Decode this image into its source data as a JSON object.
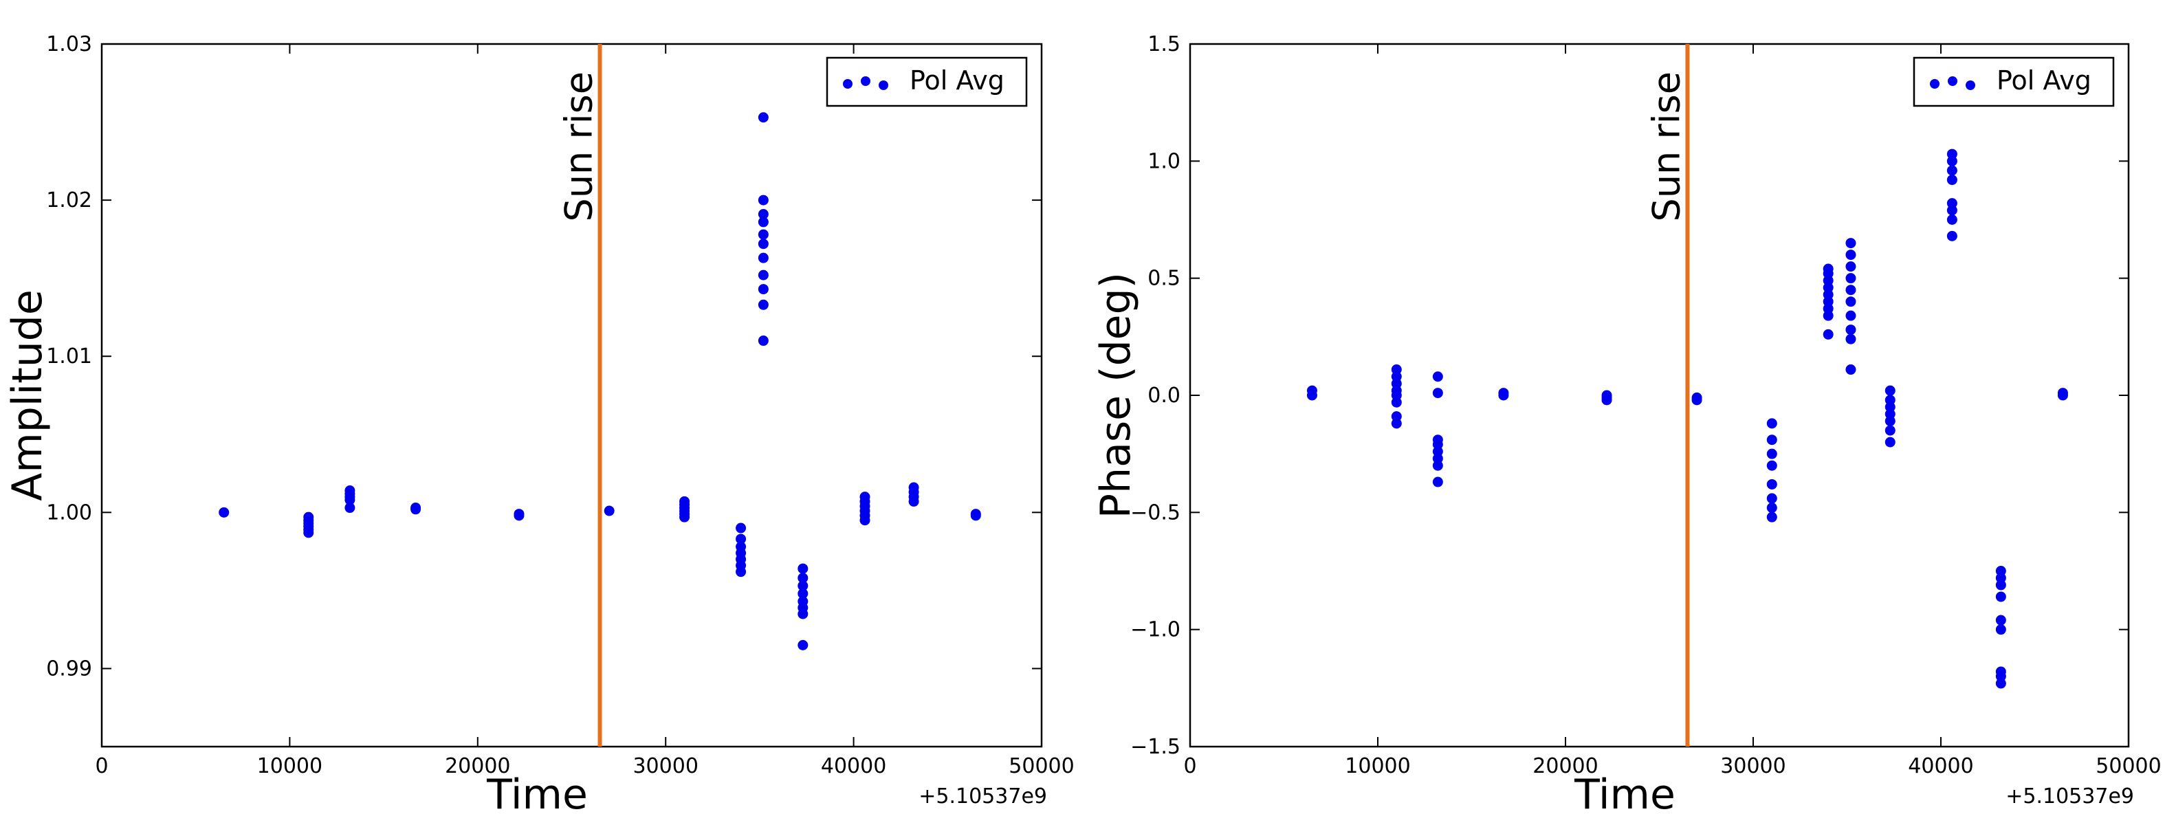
{
  "chart_data": [
    {
      "type": "scatter",
      "title": "",
      "xlabel": "Time",
      "ylabel": "Amplitude",
      "x_offset_label": "+5.10537e9",
      "xlim": [
        0,
        50000
      ],
      "ylim": [
        0.985,
        1.03
      ],
      "xticks": [
        0,
        10000,
        20000,
        30000,
        40000,
        50000
      ],
      "xtick_labels": [
        "0",
        "10000",
        "20000",
        "30000",
        "40000",
        "50000"
      ],
      "yticks": [
        0.99,
        1.0,
        1.01,
        1.02,
        1.03
      ],
      "ytick_labels": [
        "0.99",
        "1.00",
        "1.01",
        "1.02",
        "1.03"
      ],
      "grid": false,
      "legend_position": "top-right",
      "annotation": {
        "label": "Sun rise",
        "x": 26500,
        "line_color": "#e8701a",
        "text_color": "#8b0000"
      },
      "series": [
        {
          "name": "Pol Avg",
          "color": "#0000ee",
          "points": [
            [
              6500,
              1.0
            ],
            [
              11000,
              0.9987
            ],
            [
              11000,
              0.9989
            ],
            [
              11000,
              0.9991
            ],
            [
              11000,
              0.9993
            ],
            [
              11000,
              0.9995
            ],
            [
              11000,
              0.9997
            ],
            [
              13200,
              1.0003
            ],
            [
              13200,
              1.0008
            ],
            [
              13200,
              1.001
            ],
            [
              13200,
              1.0012
            ],
            [
              13200,
              1.0014
            ],
            [
              16700,
              1.0002
            ],
            [
              16700,
              1.0003
            ],
            [
              22200,
              0.9999
            ],
            [
              22200,
              0.9998
            ],
            [
              27000,
              1.0001
            ],
            [
              31000,
              0.9997
            ],
            [
              31000,
              0.9999
            ],
            [
              31000,
              1.0001
            ],
            [
              31000,
              1.0003
            ],
            [
              31000,
              1.0005
            ],
            [
              31000,
              1.0007
            ],
            [
              34000,
              0.9962
            ],
            [
              34000,
              0.9966
            ],
            [
              34000,
              0.997
            ],
            [
              34000,
              0.9974
            ],
            [
              34000,
              0.9978
            ],
            [
              34000,
              0.9983
            ],
            [
              34000,
              0.999
            ],
            [
              35200,
              1.011
            ],
            [
              35200,
              1.0133
            ],
            [
              35200,
              1.0143
            ],
            [
              35200,
              1.0152
            ],
            [
              35200,
              1.0163
            ],
            [
              35200,
              1.0172
            ],
            [
              35200,
              1.0178
            ],
            [
              35200,
              1.0186
            ],
            [
              35200,
              1.0191
            ],
            [
              35200,
              1.02
            ],
            [
              35200,
              1.0253
            ],
            [
              37300,
              0.9915
            ],
            [
              37300,
              0.9935
            ],
            [
              37300,
              0.9939
            ],
            [
              37300,
              0.9943
            ],
            [
              37300,
              0.9948
            ],
            [
              37300,
              0.9953
            ],
            [
              37300,
              0.9958
            ],
            [
              37300,
              0.9964
            ],
            [
              40600,
              0.9995
            ],
            [
              40600,
              0.9998
            ],
            [
              40600,
              1.0001
            ],
            [
              40600,
              1.0004
            ],
            [
              40600,
              1.0007
            ],
            [
              40600,
              1.001
            ],
            [
              43200,
              1.0007
            ],
            [
              43200,
              1.001
            ],
            [
              43200,
              1.0013
            ],
            [
              43200,
              1.0016
            ],
            [
              46500,
              0.9998
            ],
            [
              46500,
              0.9999
            ]
          ]
        }
      ]
    },
    {
      "type": "scatter",
      "title": "",
      "xlabel": "Time",
      "ylabel": "Phase (deg)",
      "x_offset_label": "+5.10537e9",
      "xlim": [
        0,
        50000
      ],
      "ylim": [
        -1.5,
        1.5
      ],
      "xticks": [
        0,
        10000,
        20000,
        30000,
        40000,
        50000
      ],
      "xtick_labels": [
        "0",
        "10000",
        "20000",
        "30000",
        "40000",
        "50000"
      ],
      "yticks": [
        -1.5,
        -1.0,
        -0.5,
        0.0,
        0.5,
        1.0,
        1.5
      ],
      "ytick_labels": [
        "−1.5",
        "−1.0",
        "−0.5",
        "0.0",
        "0.5",
        "1.0",
        "1.5"
      ],
      "grid": false,
      "legend_position": "top-right",
      "annotation": {
        "label": "Sun rise",
        "x": 26500,
        "line_color": "#e8701a",
        "text_color": "#8b0000"
      },
      "series": [
        {
          "name": "Pol Avg",
          "color": "#0000ee",
          "points": [
            [
              6500,
              0.0
            ],
            [
              6500,
              0.02
            ],
            [
              11000,
              -0.12
            ],
            [
              11000,
              -0.09
            ],
            [
              11000,
              -0.03
            ],
            [
              11000,
              0.0
            ],
            [
              11000,
              0.02
            ],
            [
              11000,
              0.05
            ],
            [
              11000,
              0.08
            ],
            [
              11000,
              0.11
            ],
            [
              13200,
              -0.37
            ],
            [
              13200,
              -0.3
            ],
            [
              13200,
              -0.27
            ],
            [
              13200,
              -0.24
            ],
            [
              13200,
              -0.21
            ],
            [
              13200,
              -0.19
            ],
            [
              13200,
              0.01
            ],
            [
              13200,
              0.08
            ],
            [
              16700,
              0.0
            ],
            [
              16700,
              0.01
            ],
            [
              22200,
              -0.02
            ],
            [
              22200,
              -0.01
            ],
            [
              22200,
              0.0
            ],
            [
              27000,
              -0.02
            ],
            [
              27000,
              -0.01
            ],
            [
              31000,
              -0.52
            ],
            [
              31000,
              -0.48
            ],
            [
              31000,
              -0.44
            ],
            [
              31000,
              -0.38
            ],
            [
              31000,
              -0.3
            ],
            [
              31000,
              -0.25
            ],
            [
              31000,
              -0.19
            ],
            [
              31000,
              -0.12
            ],
            [
              34000,
              0.26
            ],
            [
              34000,
              0.34
            ],
            [
              34000,
              0.37
            ],
            [
              34000,
              0.4
            ],
            [
              34000,
              0.43
            ],
            [
              34000,
              0.46
            ],
            [
              34000,
              0.49
            ],
            [
              34000,
              0.52
            ],
            [
              34000,
              0.54
            ],
            [
              35200,
              0.11
            ],
            [
              35200,
              0.24
            ],
            [
              35200,
              0.28
            ],
            [
              35200,
              0.34
            ],
            [
              35200,
              0.4
            ],
            [
              35200,
              0.45
            ],
            [
              35200,
              0.5
            ],
            [
              35200,
              0.55
            ],
            [
              35200,
              0.6
            ],
            [
              35200,
              0.65
            ],
            [
              37300,
              -0.2
            ],
            [
              37300,
              -0.15
            ],
            [
              37300,
              -0.11
            ],
            [
              37300,
              -0.08
            ],
            [
              37300,
              -0.05
            ],
            [
              37300,
              -0.02
            ],
            [
              37300,
              0.02
            ],
            [
              40600,
              0.68
            ],
            [
              40600,
              0.75
            ],
            [
              40600,
              0.79
            ],
            [
              40600,
              0.82
            ],
            [
              40600,
              0.92
            ],
            [
              40600,
              0.96
            ],
            [
              40600,
              1.0
            ],
            [
              40600,
              1.03
            ],
            [
              43200,
              -1.23
            ],
            [
              43200,
              -1.2
            ],
            [
              43200,
              -1.18
            ],
            [
              43200,
              -1.0
            ],
            [
              43200,
              -0.96
            ],
            [
              43200,
              -0.86
            ],
            [
              43200,
              -0.81
            ],
            [
              43200,
              -0.78
            ],
            [
              43200,
              -0.75
            ],
            [
              46500,
              0.0
            ],
            [
              46500,
              0.01
            ]
          ]
        }
      ]
    }
  ]
}
